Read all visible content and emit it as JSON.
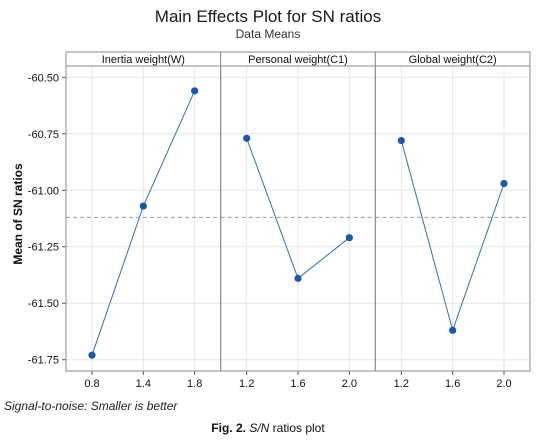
{
  "chart_data": {
    "type": "line",
    "title": "Main Effects Plot for SN ratios",
    "subtitle": "Data Means",
    "ylabel": "Mean of SN ratios",
    "ylim": [
      -61.8,
      -60.45
    ],
    "yticks": [
      -60.5,
      -60.75,
      -61.0,
      -61.25,
      -61.5,
      -61.75
    ],
    "ytick_labels": [
      "-60.50",
      "-60.75",
      "-61.00",
      "-61.25",
      "-61.50",
      "-61.75"
    ],
    "reference_mean": -61.12,
    "grid": true,
    "series_color": "#2f6fb5",
    "marker_color": "#1c56a8",
    "panels": [
      {
        "title": "Inertia weight(W)",
        "categories": [
          "0.8",
          "1.4",
          "1.8"
        ],
        "values": [
          -61.73,
          -61.07,
          -60.56
        ]
      },
      {
        "title": "Personal weight(C1)",
        "categories": [
          "1.2",
          "1.6",
          "2.0"
        ],
        "values": [
          -60.77,
          -61.39,
          -61.21
        ]
      },
      {
        "title": "Global weight(C2)",
        "categories": [
          "1.2",
          "1.6",
          "2.0"
        ],
        "values": [
          -60.78,
          -61.62,
          -60.97
        ]
      }
    ]
  },
  "footer": {
    "note": "Signal-to-noise: Smaller is better",
    "caption_label": "Fig. 2.",
    "caption_italic": "S/N",
    "caption_rest": " ratios plot"
  }
}
